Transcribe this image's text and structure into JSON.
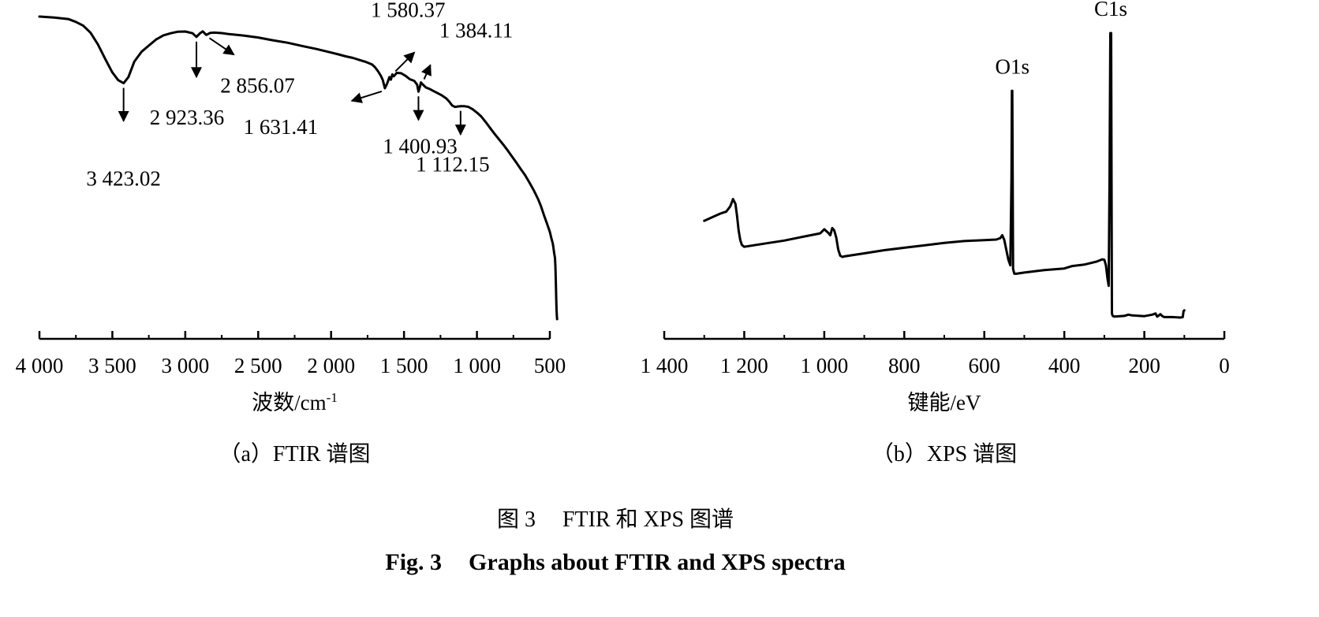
{
  "chart_data": [
    {
      "type": "line",
      "panel_caption": "（a）FTIR 谱图",
      "xlabel": "波数/cm",
      "xlabel_sup": "-1",
      "ylabel": "",
      "xlim": [
        4000,
        450
      ],
      "x_reversed": true,
      "grid": false,
      "ticks": [
        4000,
        3500,
        3000,
        2500,
        2000,
        1500,
        1000,
        500
      ],
      "tick_labels": [
        "4 000",
        "3 500",
        "3 000",
        "2 500",
        "2 000",
        "1 500",
        "1 000",
        "500"
      ],
      "y_units": "relative transmittance (unlabeled, 0–100)",
      "series": [
        {
          "x": [
            4000,
            3900,
            3800,
            3750,
            3700,
            3650,
            3600,
            3550,
            3500,
            3460,
            3423.02,
            3390,
            3350,
            3300,
            3250,
            3200,
            3150,
            3100,
            3050,
            3000,
            2950,
            2923.36,
            2900,
            2880,
            2856.07,
            2830,
            2800,
            2750,
            2700,
            2600,
            2500,
            2400,
            2300,
            2200,
            2100,
            2000,
            1950,
            1900,
            1850,
            1800,
            1760,
            1720,
            1700,
            1680,
            1660,
            1645,
            1631.41,
            1615,
            1600,
            1590,
            1580.37,
            1570,
            1550,
            1520,
            1490,
            1460,
            1430,
            1410,
            1400.93,
            1390,
            1384.11,
            1370,
            1350,
            1320,
            1300,
            1270,
            1240,
            1210,
            1190,
            1170,
            1150,
            1130,
            1112.15,
            1090,
            1060,
            1030,
            1000,
            970,
            940,
            910,
            880,
            850,
            820,
            790,
            760,
            730,
            700,
            670,
            640,
            610,
            580,
            560,
            540,
            520,
            500,
            490,
            480,
            475,
            470,
            465,
            462,
            460,
            458,
            456,
            454,
            452,
            450
          ],
          "y": [
            99.5,
            98.8,
            97.8,
            96.0,
            93.5,
            89.0,
            81.5,
            72.0,
            63.0,
            58.0,
            56.0,
            60.0,
            70.0,
            76.5,
            80.5,
            84.5,
            87.2,
            88.6,
            89.6,
            89.7,
            88.6,
            86.2,
            88.5,
            89.8,
            87.5,
            88.8,
            89.0,
            88.7,
            88.0,
            87.1,
            85.8,
            84.0,
            82.4,
            80.3,
            78.3,
            76.0,
            74.8,
            73.5,
            72.5,
            71.0,
            69.8,
            68.2,
            66.5,
            64.0,
            61.0,
            58.0,
            52.7,
            56.0,
            60.0,
            58.3,
            61.7,
            60.5,
            62.7,
            62.5,
            60.8,
            58.6,
            57.5,
            55.0,
            50.5,
            54.0,
            56.5,
            55.0,
            53.2,
            52.0,
            51.0,
            49.5,
            48.0,
            46.0,
            44.0,
            41.5,
            40.5,
            40.8,
            41.0,
            41.0,
            40.6,
            39.0,
            36.8,
            34.2,
            30.6,
            26.8,
            23.0,
            19.5,
            16.0,
            12.2,
            8.2,
            4.2,
            0.0,
            -4.0,
            -8.8,
            -14.0,
            -19.8,
            -24.5,
            -30.2,
            -35.5,
            -41.0,
            -45.0,
            -48.5,
            -51.5,
            -55.0,
            -58.0,
            -63.0,
            -70.0,
            -78.0,
            -85.0,
            -92.0,
            -96.0,
            -98.0
          ]
        }
      ],
      "annotations": [
        {
          "x": 3423.02,
          "label": "3 423.02"
        },
        {
          "x": 2923.36,
          "label": "2 923.36"
        },
        {
          "x": 2856.07,
          "label": "2 856.07"
        },
        {
          "x": 1580.37,
          "label": "1 580.37"
        },
        {
          "x": 1384.11,
          "label": "1 384.11"
        },
        {
          "x": 1631.41,
          "label": "1 631.41"
        },
        {
          "x": 1400.93,
          "label": "1 400.93"
        },
        {
          "x": 1112.15,
          "label": "1 112.15"
        }
      ]
    },
    {
      "type": "line",
      "panel_caption": "（b）XPS 谱图",
      "xlabel": "键能/eV",
      "ylabel": "",
      "xlim": [
        1400,
        0
      ],
      "x_reversed": true,
      "grid": false,
      "ticks": [
        1400,
        1200,
        1000,
        800,
        600,
        400,
        200,
        0
      ],
      "tick_labels": [
        "1 400",
        "1 200",
        "1 000",
        "800",
        "600",
        "400",
        "200",
        "0"
      ],
      "y_units": "relative intensity (unlabeled, 0–100)",
      "series": [
        {
          "x": [
            1300,
            1280,
            1260,
            1245,
            1235,
            1228,
            1222,
            1218,
            1214,
            1210,
            1206,
            1200,
            1150,
            1100,
            1050,
            1010,
            1000,
            990,
            985,
            980,
            975,
            970,
            965,
            960,
            955,
            950,
            900,
            850,
            800,
            750,
            700,
            650,
            600,
            570,
            560,
            555,
            550,
            545,
            540,
            535,
            532,
            531,
            530,
            529,
            528,
            525,
            520,
            500,
            450,
            400,
            380,
            350,
            320,
            305,
            300,
            296,
            292,
            289,
            287,
            285,
            284,
            283,
            282,
            281,
            279,
            275,
            250,
            240,
            230,
            200,
            180,
            172,
            168,
            165,
            160,
            155,
            150,
            130,
            110,
            104,
            102,
            100
          ],
          "y": [
            22.0,
            23.5,
            25.0,
            25.8,
            28.0,
            31.0,
            29.0,
            24.0,
            18.0,
            14.0,
            12.0,
            11.2,
            12.5,
            13.8,
            15.5,
            16.8,
            18.5,
            17.0,
            16.0,
            19.0,
            18.0,
            15.0,
            10.0,
            7.5,
            7.0,
            7.2,
            8.5,
            9.8,
            10.8,
            11.8,
            12.8,
            13.6,
            14.0,
            14.2,
            14.8,
            16.0,
            14.0,
            10.0,
            6.0,
            3.5,
            40.0,
            76.0,
            76.0,
            40.0,
            2.0,
            0.0,
            0.0,
            0.5,
            1.5,
            2.2,
            3.2,
            3.8,
            5.0,
            6.0,
            5.8,
            3.5,
            -2.0,
            -5.0,
            40.0,
            100.0,
            100.0,
            100.0,
            40.0,
            -16.5,
            -17.5,
            -17.8,
            -17.5,
            -17.0,
            -17.3,
            -17.6,
            -17.0,
            -16.5,
            -17.8,
            -17.5,
            -16.8,
            -17.6,
            -18.0,
            -18.0,
            -18.2,
            -18.0,
            -15.5,
            -15.2
          ]
        }
      ],
      "annotations": [
        {
          "x": 530,
          "label": "O1s"
        },
        {
          "x": 284,
          "label": "C1s"
        }
      ]
    }
  ],
  "figure_caption": {
    "cn_prefix": "图 3",
    "cn_text": "FTIR 和 XPS 图谱",
    "en_prefix": "Fig. 3",
    "en_text": "Graphs about FTIR and XPS spectra"
  }
}
